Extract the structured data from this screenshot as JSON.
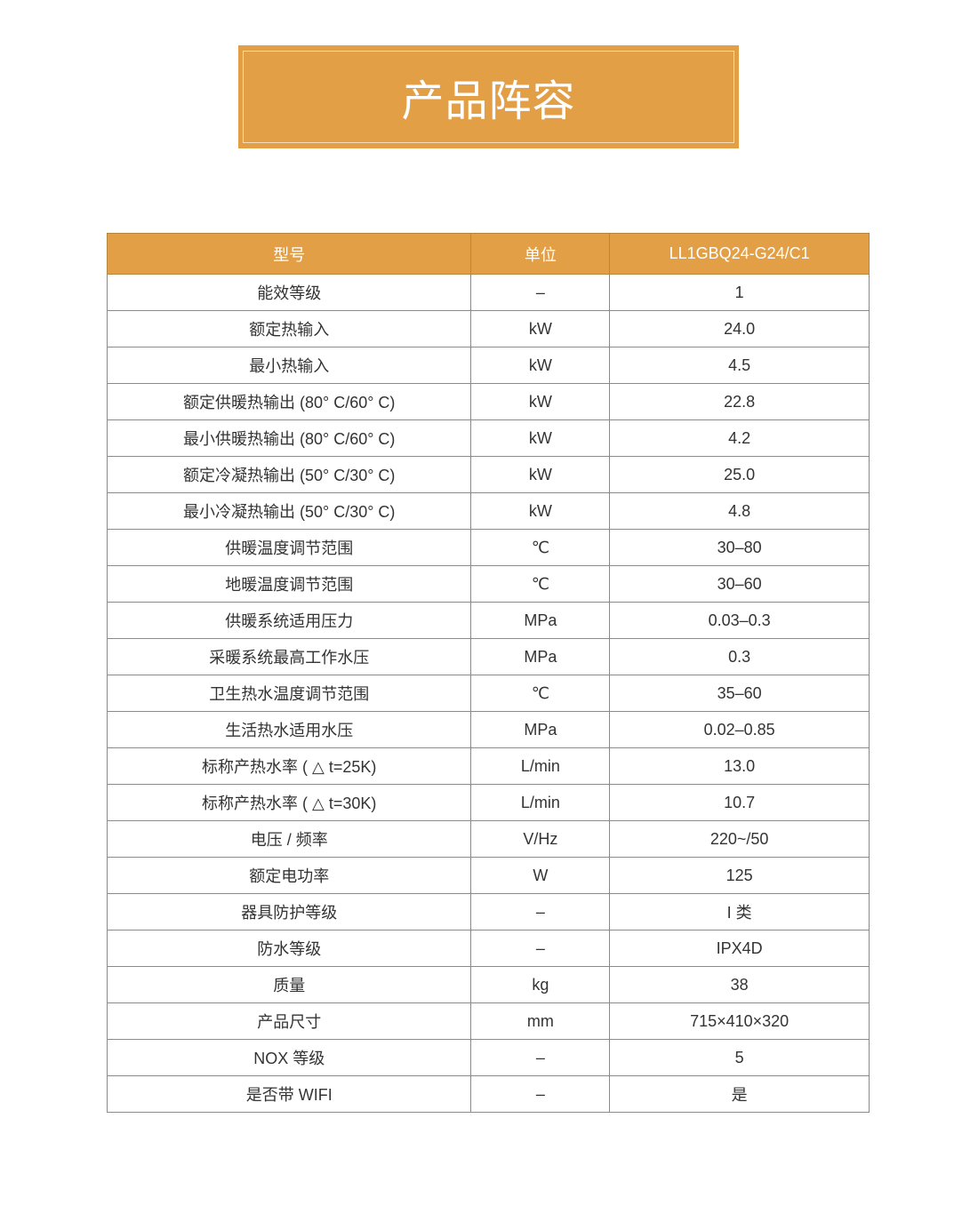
{
  "banner": {
    "title": "产品阵容"
  },
  "colors": {
    "accent": "#e29f45",
    "text": "#333333"
  },
  "table": {
    "headers": [
      "型号",
      "单位",
      "LL1GBQ24-G24/C1"
    ],
    "rows": [
      [
        "能效等级",
        "–",
        "1"
      ],
      [
        "额定热输入",
        "kW",
        "24.0"
      ],
      [
        "最小热输入",
        "kW",
        "4.5"
      ],
      [
        "额定供暖热输出 (80° C/60° C)",
        "kW",
        "22.8"
      ],
      [
        "最小供暖热输出 (80° C/60° C)",
        "kW",
        "4.2"
      ],
      [
        "额定冷凝热输出 (50° C/30° C)",
        "kW",
        "25.0"
      ],
      [
        "最小冷凝热输出 (50° C/30° C)",
        "kW",
        "4.8"
      ],
      [
        "供暖温度调节范围",
        "℃",
        "30–80"
      ],
      [
        "地暖温度调节范围",
        "℃",
        "30–60"
      ],
      [
        "供暖系统适用压力",
        "MPa",
        "0.03–0.3"
      ],
      [
        "采暖系统最高工作水压",
        "MPa",
        "0.3"
      ],
      [
        "卫生热水温度调节范围",
        "℃",
        "35–60"
      ],
      [
        "生活热水适用水压",
        "MPa",
        "0.02–0.85"
      ],
      [
        "标称产热水率 ( △ t=25K)",
        "L/min",
        "13.0"
      ],
      [
        "标称产热水率 ( △ t=30K)",
        "L/min",
        "10.7"
      ],
      [
        "电压 / 频率",
        "V/Hz",
        "220~/50"
      ],
      [
        "额定电功率",
        "W",
        "125"
      ],
      [
        "器具防护等级",
        "–",
        "I 类"
      ],
      [
        "防水等级",
        "–",
        "IPX4D"
      ],
      [
        "质量",
        "kg",
        "38"
      ],
      [
        "产品尺寸",
        "mm",
        "715×410×320"
      ],
      [
        "NOX 等级",
        "–",
        "5"
      ],
      [
        "是否带 WIFI",
        "–",
        "是"
      ]
    ]
  }
}
